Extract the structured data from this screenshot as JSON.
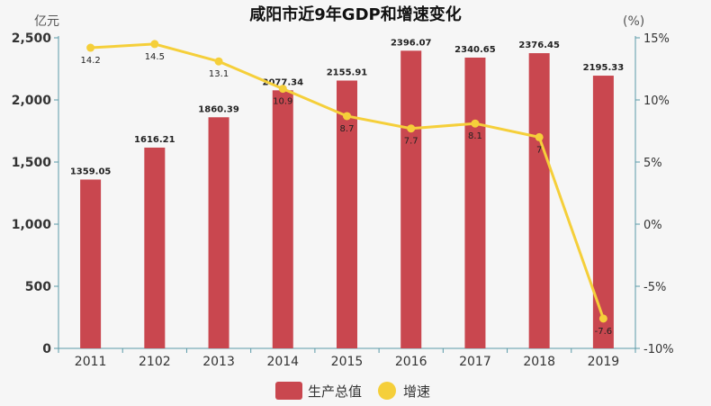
{
  "chart_data": {
    "type": "bar+line",
    "title": "咸阳市近9年GDP和增速变化",
    "categories": [
      "2011",
      "2102",
      "2013",
      "2014",
      "2015",
      "2016",
      "2017",
      "2018",
      "2019"
    ],
    "series": [
      {
        "name": "生产总值",
        "type": "bar",
        "axis": "left",
        "values": [
          1359.05,
          1616.21,
          1860.39,
          2077.34,
          2155.91,
          2396.07,
          2340.65,
          2376.45,
          2195.33
        ],
        "labels": [
          "1359.05",
          "1616.21",
          "1860.39",
          "2077.34",
          "2155.91",
          "2396.07",
          "2340.65",
          "2376.45",
          "2195.33"
        ],
        "color": "#c9474f"
      },
      {
        "name": "增速",
        "type": "line",
        "axis": "right",
        "values": [
          14.2,
          14.5,
          13.1,
          10.9,
          8.7,
          7.7,
          8.1,
          7,
          -7.6
        ],
        "labels": [
          "14.2",
          "14.5",
          "13.1",
          "10.9",
          "8.7",
          "7.7",
          "8.1",
          "7",
          "-7.6"
        ],
        "color": "#f5cf3a"
      }
    ],
    "y_left": {
      "label": "亿元",
      "ylim": [
        0,
        2500
      ],
      "ticks": [
        0,
        500,
        1000,
        1500,
        2000,
        2500
      ],
      "tick_labels": [
        "0",
        "500",
        "1,000",
        "1,500",
        "2,000",
        "2,500"
      ]
    },
    "y_right": {
      "label": "(%)",
      "ylim": [
        -10,
        15
      ],
      "ticks": [
        -10,
        -5,
        0,
        5,
        10,
        15
      ],
      "tick_labels": [
        "-10%",
        "-5%",
        "0%",
        "5%",
        "10%",
        "15%"
      ]
    },
    "grid": false,
    "legend": "bottom-center",
    "colors": {
      "axis": "#5b9aa8",
      "text": "#333333"
    }
  }
}
